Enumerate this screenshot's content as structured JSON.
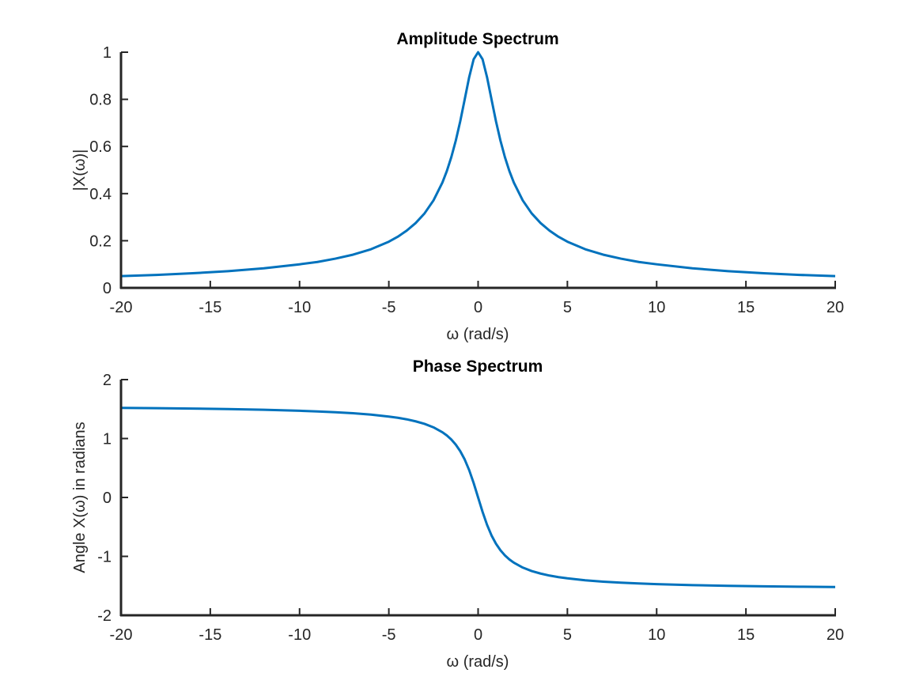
{
  "chart_data": [
    {
      "type": "line",
      "title": "Amplitude Spectrum",
      "xlabel": "ω (rad/s)",
      "ylabel": "|X(ω)|",
      "xlim": [
        -20,
        20
      ],
      "ylim": [
        0,
        1
      ],
      "xticks": [
        "-20",
        "-15",
        "-10",
        "-5",
        "0",
        "5",
        "10",
        "15",
        "20"
      ],
      "yticks": [
        "0",
        "0.2",
        "0.4",
        "0.6",
        "0.8",
        "1"
      ],
      "grid": false,
      "line_color": "#0072BD",
      "series": [
        {
          "x": [
            -20,
            -18,
            -16,
            -14,
            -12,
            -10,
            -9,
            -8,
            -7,
            -6,
            -5,
            -4.5,
            -4,
            -3.5,
            -3,
            -2.5,
            -2,
            -1.75,
            -1.5,
            -1.25,
            -1,
            -0.75,
            -0.5,
            -0.25,
            0,
            0.25,
            0.5,
            0.75,
            1,
            1.25,
            1.5,
            1.75,
            2,
            2.5,
            3,
            3.5,
            4,
            4.5,
            5,
            6,
            7,
            8,
            9,
            10,
            12,
            14,
            16,
            18,
            20
          ],
          "y": [
            0.05,
            0.055,
            0.062,
            0.071,
            0.083,
            0.1,
            0.11,
            0.124,
            0.141,
            0.164,
            0.196,
            0.217,
            0.243,
            0.275,
            0.316,
            0.371,
            0.447,
            0.496,
            0.555,
            0.625,
            0.707,
            0.8,
            0.894,
            0.97,
            1.0,
            0.97,
            0.894,
            0.8,
            0.707,
            0.625,
            0.555,
            0.496,
            0.447,
            0.371,
            0.316,
            0.275,
            0.243,
            0.217,
            0.196,
            0.164,
            0.141,
            0.124,
            0.11,
            0.1,
            0.083,
            0.071,
            0.062,
            0.055,
            0.05
          ]
        }
      ]
    },
    {
      "type": "line",
      "title": "Phase Spectrum",
      "xlabel": "ω (rad/s)",
      "ylabel": "Angle X(ω) in radians",
      "xlim": [
        -20,
        20
      ],
      "ylim": [
        -2,
        2
      ],
      "xticks": [
        "-20",
        "-15",
        "-10",
        "-5",
        "0",
        "5",
        "10",
        "15",
        "20"
      ],
      "yticks": [
        "-2",
        "-1",
        "0",
        "1",
        "2"
      ],
      "grid": false,
      "line_color": "#0072BD",
      "series": [
        {
          "x": [
            -20,
            -18,
            -16,
            -14,
            -12,
            -10,
            -9,
            -8,
            -7,
            -6,
            -5,
            -4.5,
            -4,
            -3.5,
            -3,
            -2.5,
            -2,
            -1.75,
            -1.5,
            -1.25,
            -1,
            -0.75,
            -0.5,
            -0.25,
            0,
            0.25,
            0.5,
            0.75,
            1,
            1.25,
            1.5,
            1.75,
            2,
            2.5,
            3,
            3.5,
            4,
            4.5,
            5,
            6,
            7,
            8,
            9,
            10,
            12,
            14,
            16,
            18,
            20
          ],
          "y": [
            1.52,
            1.515,
            1.508,
            1.5,
            1.488,
            1.471,
            1.46,
            1.446,
            1.429,
            1.406,
            1.373,
            1.352,
            1.326,
            1.292,
            1.249,
            1.19,
            1.107,
            1.052,
            0.983,
            0.896,
            0.785,
            0.644,
            0.464,
            0.245,
            0.0,
            -0.245,
            -0.464,
            -0.644,
            -0.785,
            -0.896,
            -0.983,
            -1.052,
            -1.107,
            -1.19,
            -1.249,
            -1.292,
            -1.326,
            -1.352,
            -1.373,
            -1.406,
            -1.429,
            -1.446,
            -1.46,
            -1.471,
            -1.488,
            -1.5,
            -1.508,
            -1.515,
            -1.52
          ]
        }
      ]
    }
  ]
}
